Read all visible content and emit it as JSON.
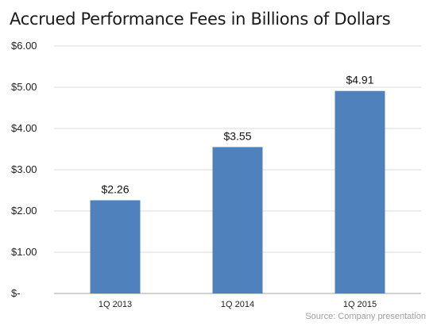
{
  "chart_data": {
    "type": "bar",
    "title": "Accrued Performance Fees in Billions of Dollars",
    "categories": [
      "1Q 2013",
      "1Q 2014",
      "1Q 2015"
    ],
    "values": [
      2.26,
      3.55,
      4.91
    ],
    "data_labels": [
      "$2.26",
      "$3.55",
      "$4.91"
    ],
    "y_ticks": [
      {
        "value": 0,
        "label": "$-"
      },
      {
        "value": 1,
        "label": "$1.00"
      },
      {
        "value": 2,
        "label": "$2.00"
      },
      {
        "value": 3,
        "label": "$3.00"
      },
      {
        "value": 4,
        "label": "$4.00"
      },
      {
        "value": 5,
        "label": "$5.00"
      },
      {
        "value": 6,
        "label": "$6.00"
      }
    ],
    "ylim": [
      0,
      6
    ],
    "grid": true,
    "bar_color": "#4f81bd",
    "grid_color": "#d9d9d9",
    "source": "Source: Company presentation"
  }
}
